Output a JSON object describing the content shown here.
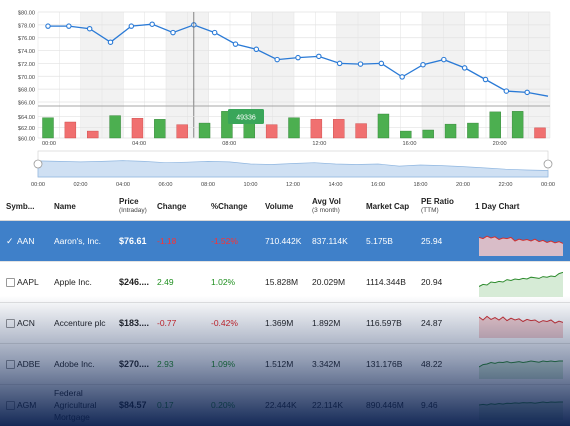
{
  "colors": {
    "price_line": "#2a7ad6",
    "volume_up": "#4caf50",
    "volume_down": "#f07070",
    "selected_row": "#3f80c9",
    "positive": "#1f8f1f",
    "negative": "#e02020"
  },
  "chart_data": [
    {
      "type": "line",
      "series": [
        {
          "values": [
            77.8,
            77.8,
            77.4,
            75.3,
            77.8,
            78.1,
            76.8,
            78.0,
            76.8,
            75.0,
            74.2,
            72.6,
            72.9,
            73.1,
            72.0,
            71.9,
            72.0,
            69.9,
            71.8,
            72.6,
            71.3,
            69.5,
            67.7,
            67.5,
            66.9
          ]
        }
      ],
      "x_tick_labels": [
        "00:00",
        "04:00",
        "08:00",
        "12:00",
        "16:00",
        "20:00"
      ],
      "y_tick_labels": [
        "$80.00",
        "$78.00",
        "$76.00",
        "$74.00",
        "$72.00",
        "$70.00",
        "$68.00",
        "$66.00"
      ],
      "ylim": [
        66,
        80
      ],
      "grid": true
    },
    {
      "type": "bar",
      "values": [
        63.8,
        63.0,
        61.3,
        64.2,
        63.7,
        63.5,
        62.5,
        62.8,
        65.0,
        64.7,
        62.5,
        63.8,
        63.5,
        63.5,
        62.7,
        64.5,
        61.3,
        61.5,
        62.6,
        62.8,
        64.9,
        65.0,
        61.9
      ],
      "directions": [
        "up",
        "down",
        "down",
        "up",
        "down",
        "up",
        "down",
        "up",
        "up",
        "up",
        "down",
        "up",
        "down",
        "down",
        "down",
        "up",
        "up",
        "up",
        "up",
        "up",
        "up",
        "up",
        "down"
      ],
      "y_tick_labels": [
        "$64.00",
        "$62.00",
        "$60.00"
      ],
      "ylim": [
        60,
        66
      ],
      "tooltip": "49336"
    },
    {
      "type": "area",
      "values": [
        0.62,
        0.6,
        0.58,
        0.6,
        0.63,
        0.6,
        0.55,
        0.57,
        0.6,
        0.58,
        0.5,
        0.48,
        0.52,
        0.55,
        0.5,
        0.48,
        0.5,
        0.42,
        0.46,
        0.44,
        0.4,
        0.35,
        0.3,
        0.27,
        0.25
      ],
      "x_tick_labels": [
        "00:00",
        "02:00",
        "04:00",
        "06:00",
        "08:00",
        "10:00",
        "12:00",
        "14:00",
        "16:00",
        "18:00",
        "20:00",
        "22:00",
        "00:00"
      ]
    }
  ],
  "grid": {
    "headers": {
      "symbol": "Symb...",
      "name": "Name",
      "price": "Price",
      "price_sub": "(Intraday)",
      "change": "Change",
      "pchange": "%Change",
      "volume": "Volume",
      "avgvol": "Avg Vol",
      "avgvol_sub": "(3 month)",
      "mcap": "Market Cap",
      "pe": "PE Ratio",
      "pe_sub": "(TTM)",
      "daychart": "1 Day Chart"
    },
    "rows": [
      {
        "symbol": "AAN",
        "name": "Aaron's, Inc.",
        "price": "$76.61",
        "change": "-1.18",
        "pchange": "-1.52%",
        "volume": "710.442K",
        "avgvol": "837.114K",
        "mcap": "5.175B",
        "pe": "25.94",
        "selected": true,
        "trend": "down",
        "spark": [
          0.62,
          0.58,
          0.66,
          0.6,
          0.64,
          0.55,
          0.6,
          0.58,
          0.62,
          0.5,
          0.56,
          0.52,
          0.55,
          0.5,
          0.56,
          0.48,
          0.52,
          0.45,
          0.5,
          0.44,
          0.48,
          0.42
        ]
      },
      {
        "symbol": "AAPL",
        "name": "Apple Inc.",
        "price": "$246....",
        "change": "2.49",
        "pchange": "1.02%",
        "volume": "15.828M",
        "avgvol": "20.029M",
        "mcap": "1114.344B",
        "pe": "20.94",
        "selected": false,
        "trend": "up",
        "spark": [
          0.35,
          0.42,
          0.4,
          0.5,
          0.48,
          0.52,
          0.5,
          0.58,
          0.55,
          0.6,
          0.58,
          0.62,
          0.6,
          0.66,
          0.64,
          0.62,
          0.68,
          0.66,
          0.7,
          0.68,
          0.78,
          0.82
        ]
      },
      {
        "symbol": "ACN",
        "name": "Accenture plc",
        "price": "$183....",
        "change": "-0.77",
        "pchange": "-0.42%",
        "volume": "1.369M",
        "avgvol": "1.892M",
        "mcap": "116.597B",
        "pe": "24.87",
        "selected": false,
        "trend": "down",
        "spark": [
          0.7,
          0.6,
          0.72,
          0.62,
          0.68,
          0.6,
          0.7,
          0.58,
          0.66,
          0.6,
          0.64,
          0.55,
          0.62,
          0.58,
          0.6,
          0.52,
          0.58,
          0.55,
          0.6,
          0.5,
          0.56,
          0.52
        ]
      },
      {
        "symbol": "ADBE",
        "name": "Adobe Inc.",
        "price": "$270....",
        "change": "2.93",
        "pchange": "1.09%",
        "volume": "1.512M",
        "avgvol": "3.342M",
        "mcap": "131.176B",
        "pe": "48.22",
        "selected": false,
        "trend": "up",
        "spark": [
          0.4,
          0.48,
          0.5,
          0.55,
          0.52,
          0.56,
          0.55,
          0.58,
          0.54,
          0.56,
          0.58,
          0.55,
          0.57,
          0.6,
          0.58,
          0.56,
          0.6,
          0.58,
          0.6,
          0.58,
          0.6,
          0.6
        ]
      },
      {
        "symbol": "AGM",
        "name": "Federal Agricultural Mortgage",
        "price": "$84.57",
        "change": "0.17",
        "pchange": "0.20%",
        "volume": "22.444K",
        "avgvol": "22.114K",
        "mcap": "890.446M",
        "pe": "9.46",
        "selected": false,
        "trend": "up",
        "spark": [
          0.5,
          0.52,
          0.5,
          0.54,
          0.52,
          0.55,
          0.53,
          0.56,
          0.55,
          0.57,
          0.56,
          0.58,
          0.57,
          0.58,
          0.56,
          0.58,
          0.6,
          0.58,
          0.6,
          0.59,
          0.6,
          0.6
        ]
      }
    ]
  }
}
